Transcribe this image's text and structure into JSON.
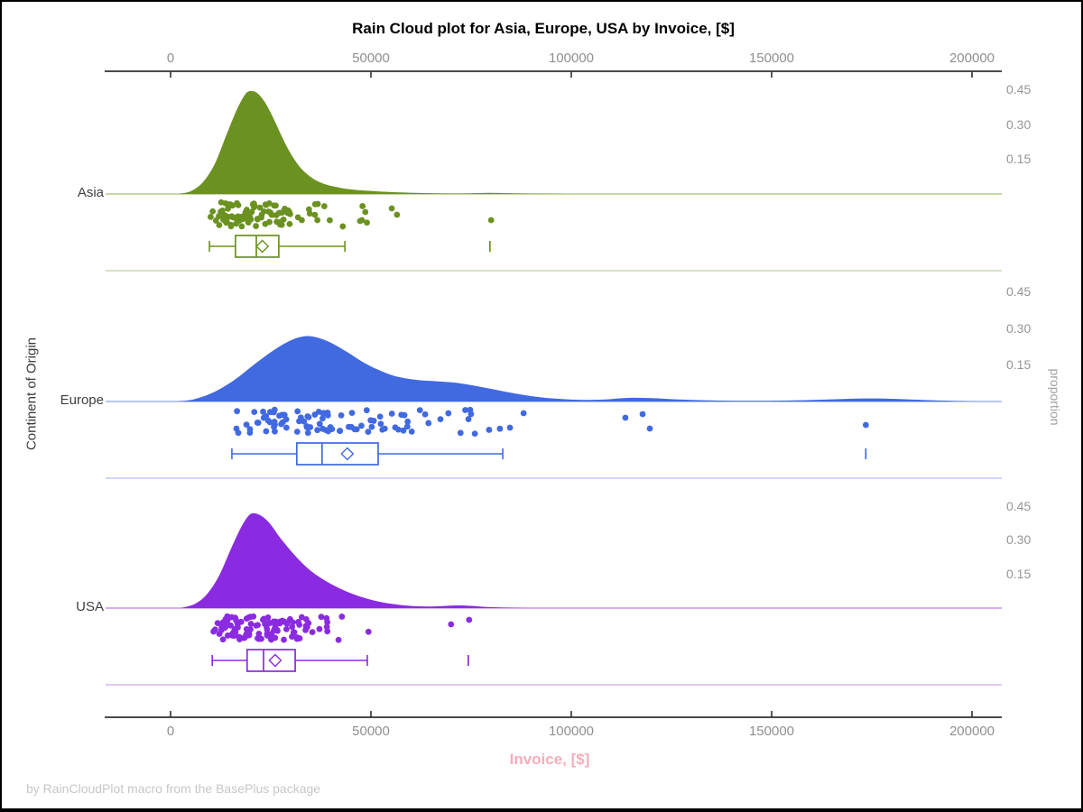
{
  "chart_data": {
    "type": "raincloud",
    "subcharts": [
      "half-density area",
      "jittered scatter strip",
      "box plot with mean diamond"
    ],
    "title": "Rain Cloud plot for Asia, Europe, USA by Invoice, [$]",
    "xlabel": "Invoice, [$]",
    "ylabel_left": "Continent of Origin",
    "ylabel_right": "proportion",
    "footer": "by RainCloudPlot macro from the BasePlus package",
    "x_range": [
      0,
      200000
    ],
    "x_ticks": [
      0,
      50000,
      100000,
      150000,
      200000
    ],
    "x_tick_labels": [
      "0",
      "50000",
      "100000",
      "150000",
      "200000"
    ],
    "prop_tick_values": [
      0.15,
      0.3,
      0.45
    ],
    "prop_tick_labels": [
      "0.15",
      "0.30",
      "0.45"
    ],
    "grid": "off",
    "axis_color": "#303030",
    "tick_label_color": "#8F8F8F",
    "groups": [
      {
        "name": "Asia",
        "color": "#6B9221",
        "density": [
          [
            1800,
            0
          ],
          [
            5000,
            0.012
          ],
          [
            8000,
            0.05
          ],
          [
            11000,
            0.13
          ],
          [
            14000,
            0.26
          ],
          [
            16500,
            0.365
          ],
          [
            18500,
            0.43
          ],
          [
            19800,
            0.447
          ],
          [
            21500,
            0.44
          ],
          [
            23500,
            0.4
          ],
          [
            25500,
            0.335
          ],
          [
            27500,
            0.26
          ],
          [
            29500,
            0.19
          ],
          [
            31500,
            0.135
          ],
          [
            33500,
            0.095
          ],
          [
            36000,
            0.062
          ],
          [
            39000,
            0.04
          ],
          [
            42000,
            0.028
          ],
          [
            45000,
            0.02
          ],
          [
            48000,
            0.015
          ],
          [
            52000,
            0.011
          ],
          [
            56000,
            0.008
          ],
          [
            61000,
            0.005
          ],
          [
            66000,
            0.003
          ],
          [
            71000,
            0.002
          ],
          [
            75000,
            0.003
          ],
          [
            79000,
            0.005
          ],
          [
            83000,
            0.004
          ],
          [
            88000,
            0.002
          ],
          [
            94000,
            0.001
          ],
          [
            100000,
            0
          ]
        ],
        "box": {
          "whisker_low": 9700,
          "q1": 16200,
          "median": 21400,
          "q3": 27000,
          "whisker_high": 43500,
          "mean": 22900,
          "outliers": [
            79700
          ]
        },
        "scatter": {
          "n": 100,
          "seed": 11,
          "lognormal_mu": 9.971,
          "lognormal_sigma": 0.345,
          "clip": [
            9700,
            56000
          ],
          "extra_points": [
            [
              47300,
              30
            ],
            [
              48600,
              20
            ],
            [
              55200,
              16
            ],
            [
              56500,
              23
            ],
            [
              80000,
              29
            ]
          ]
        }
      },
      {
        "name": "Europe",
        "color": "#4169E0",
        "density": [
          [
            1500,
            0
          ],
          [
            6000,
            0.01
          ],
          [
            11000,
            0.04
          ],
          [
            16000,
            0.09
          ],
          [
            21000,
            0.155
          ],
          [
            26000,
            0.215
          ],
          [
            30000,
            0.253
          ],
          [
            33500,
            0.27
          ],
          [
            36500,
            0.265
          ],
          [
            40000,
            0.243
          ],
          [
            44000,
            0.205
          ],
          [
            48000,
            0.163
          ],
          [
            52000,
            0.13
          ],
          [
            56000,
            0.105
          ],
          [
            61000,
            0.09
          ],
          [
            66000,
            0.084
          ],
          [
            71000,
            0.078
          ],
          [
            76000,
            0.065
          ],
          [
            81000,
            0.049
          ],
          [
            86000,
            0.033
          ],
          [
            91000,
            0.02
          ],
          [
            96000,
            0.012
          ],
          [
            102000,
            0.007
          ],
          [
            108000,
            0.008
          ],
          [
            114000,
            0.015
          ],
          [
            120000,
            0.014
          ],
          [
            126000,
            0.009
          ],
          [
            133000,
            0.005
          ],
          [
            141000,
            0.003
          ],
          [
            149000,
            0.003
          ],
          [
            157000,
            0.005
          ],
          [
            165000,
            0.009
          ],
          [
            172000,
            0.012
          ],
          [
            178000,
            0.012
          ],
          [
            184000,
            0.009
          ],
          [
            190000,
            0.005
          ],
          [
            196000,
            0.002
          ],
          [
            201000,
            0
          ]
        ],
        "box": {
          "whisker_low": 15300,
          "q1": 31500,
          "median": 37800,
          "q3": 51800,
          "whisker_high": 82900,
          "mean": 44100,
          "outliers": [
            173500
          ]
        },
        "scatter": {
          "n": 96,
          "seed": 23,
          "lognormal_mu": 10.54,
          "lognormal_sigma": 0.46,
          "clip": [
            15300,
            83000
          ],
          "extra_points": [
            [
              84700,
              29
            ],
            [
              88100,
              13
            ],
            [
              113500,
              18
            ],
            [
              117800,
              14
            ],
            [
              119600,
              30
            ],
            [
              173500,
              26
            ]
          ]
        }
      },
      {
        "name": "USA",
        "color": "#8B2BE1",
        "density": [
          [
            2500,
            0
          ],
          [
            6000,
            0.018
          ],
          [
            9000,
            0.06
          ],
          [
            12000,
            0.14
          ],
          [
            15000,
            0.26
          ],
          [
            17500,
            0.355
          ],
          [
            19500,
            0.41
          ],
          [
            21000,
            0.42
          ],
          [
            23000,
            0.405
          ],
          [
            25000,
            0.37
          ],
          [
            27000,
            0.32
          ],
          [
            29500,
            0.265
          ],
          [
            32000,
            0.215
          ],
          [
            35000,
            0.165
          ],
          [
            38000,
            0.128
          ],
          [
            41000,
            0.098
          ],
          [
            44000,
            0.073
          ],
          [
            47000,
            0.053
          ],
          [
            50000,
            0.037
          ],
          [
            53000,
            0.025
          ],
          [
            56000,
            0.017
          ],
          [
            59000,
            0.011
          ],
          [
            62000,
            0.008
          ],
          [
            65000,
            0.007
          ],
          [
            68000,
            0.009
          ],
          [
            71500,
            0.012
          ],
          [
            75000,
            0.01
          ],
          [
            79000,
            0.005
          ],
          [
            84000,
            0.002
          ],
          [
            90000,
            0
          ]
        ],
        "box": {
          "whisker_low": 10400,
          "q1": 19100,
          "median": 23200,
          "q3": 31100,
          "whisker_high": 49100,
          "mean": 26100,
          "outliers": [
            74300
          ]
        },
        "scatter": {
          "n": 108,
          "seed": 37,
          "lognormal_mu": 10.052,
          "lognormal_sigma": 0.42,
          "clip": [
            10400,
            50000
          ],
          "extra_points": [
            [
              70000,
              18
            ],
            [
              74500,
              13
            ]
          ]
        }
      }
    ]
  }
}
